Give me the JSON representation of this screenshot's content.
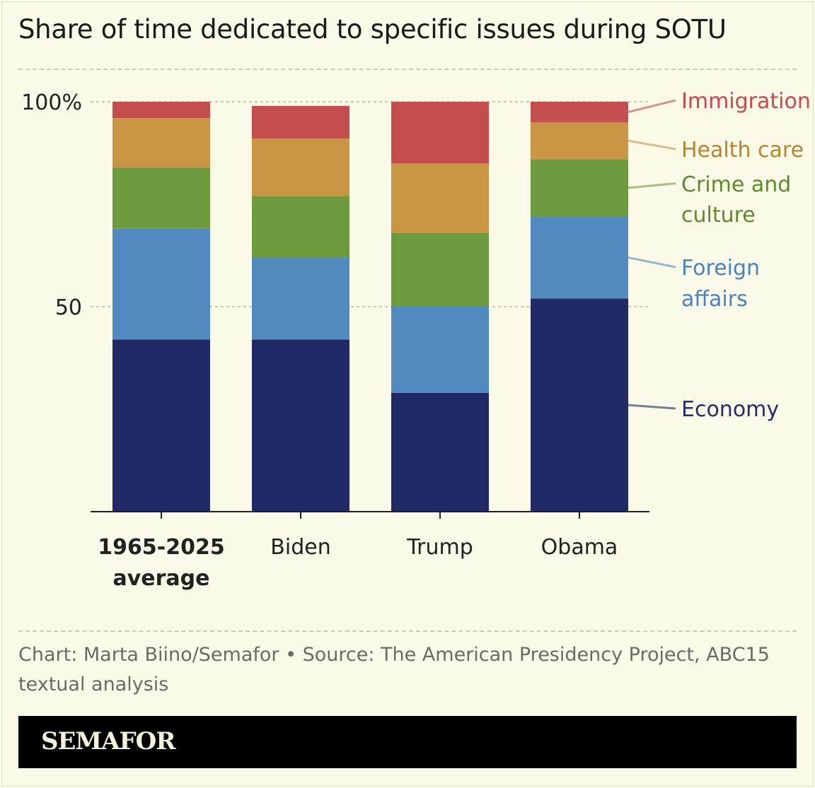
{
  "title": "Share of time dedicated to specific issues during SOTU",
  "footer": "Chart: Marta Biino/Semafor • Source: The American Presidency Project, ABC15 textual analysis",
  "brand": "SEMAFOR",
  "chart_data": {
    "type": "bar",
    "stacked": true,
    "title": "Share of time dedicated to specific issues during SOTU",
    "categories": [
      "1965-2025 average",
      "Biden",
      "Trump",
      "Obama"
    ],
    "category_lines": [
      [
        "1965-2025",
        "average"
      ],
      [
        "Biden"
      ],
      [
        "Trump"
      ],
      [
        "Obama"
      ]
    ],
    "ylim": [
      0,
      100
    ],
    "yticks": [
      {
        "value": 50,
        "label": "50"
      },
      {
        "value": 100,
        "label": "100%"
      }
    ],
    "grid": true,
    "legend": "right, direct labels",
    "series": [
      {
        "name": "Economy",
        "label_lines": [
          "Economy"
        ],
        "color": "#202966",
        "text_color": "#262c6c",
        "values": [
          42,
          42,
          29,
          52
        ]
      },
      {
        "name": "Foreign affairs",
        "label_lines": [
          "Foreign",
          "affairs"
        ],
        "color": "#5289be",
        "text_color": "#4a84c0",
        "values": [
          27,
          20,
          21,
          20
        ]
      },
      {
        "name": "Crime and culture",
        "label_lines": [
          "Crime and",
          "culture"
        ],
        "color": "#6e9a3e",
        "text_color": "#5f8a2e",
        "values": [
          15,
          15,
          18,
          14
        ]
      },
      {
        "name": "Health care",
        "label_lines": [
          "Health care"
        ],
        "color": "#c99443",
        "text_color": "#b5862e",
        "values": [
          12,
          14,
          17,
          9
        ]
      },
      {
        "name": "Immigration",
        "label_lines": [
          "Immigration"
        ],
        "color": "#c44e4e",
        "text_color": "#c9484f",
        "values": [
          4,
          8,
          15,
          5
        ]
      }
    ]
  }
}
